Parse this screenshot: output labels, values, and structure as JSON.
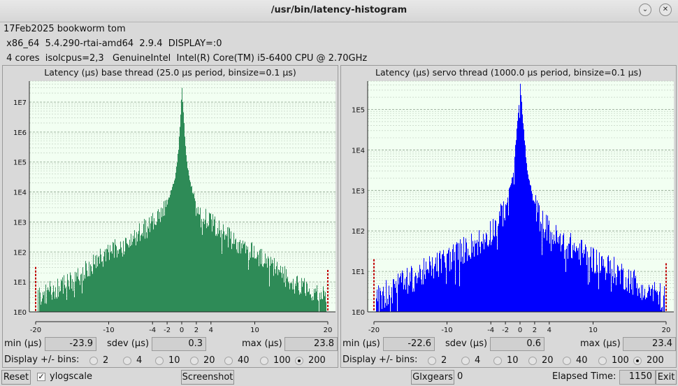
{
  "window": {
    "title": "/usr/bin/latency-histogram",
    "minimize_icon": "chevron-down-icon",
    "close_icon": "close-icon"
  },
  "info": {
    "line1": "17Feb2025 bookworm tom",
    "line2": " x86_64  5.4.290-rtai-amd64  2.9.4  DISPLAY=:0",
    "line3": " 4 cores  isolcpus=2,3   GenuineIntel  Intel(R) Core(TM) i5-6400 CPU @ 2.70GHz"
  },
  "panels": [
    {
      "title": "Latency (µs) base thread (25.0 µs period, binsize=0.1 µs)",
      "color": "#2e8b57",
      "min_label": "min (µs)",
      "min": "-23.9",
      "sdev_label": "sdev (µs)",
      "sdev": "0.3",
      "max_label": "max (µs)",
      "max": "23.8",
      "bins_label": "Display +/- bins:",
      "bins": [
        "2",
        "4",
        "10",
        "20",
        "40",
        "100",
        "200"
      ],
      "selected_bin": "200"
    },
    {
      "title": "Latency (µs) servo thread (1000.0 µs period, binsize=0.1 µs)",
      "color": "#0000ff",
      "min_label": "min (µs)",
      "min": "-22.6",
      "sdev_label": "sdev (µs)",
      "sdev": "0.6",
      "max_label": "max (µs)",
      "max": "23.4",
      "bins_label": "Display +/- bins:",
      "bins": [
        "2",
        "4",
        "10",
        "20",
        "40",
        "100",
        "200"
      ],
      "selected_bin": "200"
    }
  ],
  "chart_data": [
    {
      "type": "bar",
      "title": "Latency (µs) base thread (25.0 µs period, binsize=0.1 µs)",
      "xlim": [
        -20,
        20
      ],
      "x_ticks": [
        -20,
        -10,
        -4,
        -2,
        0,
        2,
        4,
        10,
        20
      ],
      "y_scale": "log",
      "y_ticks": [
        "1E0",
        "1E1",
        "1E2",
        "1E3",
        "1E4",
        "1E5",
        "1E6",
        "1E7"
      ],
      "ylim_log10": [
        0,
        7.7
      ],
      "grid": true,
      "series": [
        {
          "color": "#2e8b57",
          "x": [
            -20,
            -19,
            -18,
            -17,
            -16,
            -15,
            -14,
            -13,
            -12,
            -11,
            -10,
            -9,
            -8,
            -7,
            -6,
            -5,
            -4,
            -3,
            -2,
            -1,
            -0.5,
            0,
            0.5,
            1,
            2,
            3,
            4,
            5,
            6,
            7,
            8,
            9,
            10,
            11,
            12,
            13,
            14,
            15,
            16,
            17,
            18,
            19,
            20
          ],
          "log10_counts": [
            0.6,
            0.5,
            0.7,
            0.8,
            0.9,
            1.0,
            1.2,
            1.4,
            1.6,
            1.8,
            2.0,
            2.1,
            2.2,
            2.4,
            2.6,
            2.8,
            3.0,
            3.2,
            3.6,
            4.4,
            5.4,
            7.4,
            5.4,
            4.4,
            3.6,
            3.2,
            3.0,
            2.8,
            2.6,
            2.4,
            2.2,
            2.1,
            2.0,
            1.8,
            1.6,
            1.4,
            1.2,
            1.0,
            0.9,
            0.8,
            0.7,
            0.5,
            0.6
          ]
        }
      ],
      "overflow_markers_log10": {
        "left": 1.5,
        "right": 1.4
      }
    },
    {
      "type": "bar",
      "title": "Latency (µs) servo thread (1000.0 µs period, binsize=0.1 µs)",
      "xlim": [
        -20,
        20
      ],
      "x_ticks": [
        -20,
        -10,
        -4,
        -2,
        0,
        2,
        4,
        10,
        20
      ],
      "y_scale": "log",
      "y_ticks": [
        "1E0",
        "1E1",
        "1E2",
        "1E3",
        "1E4",
        "1E5"
      ],
      "ylim_log10": [
        0,
        5.7
      ],
      "grid": true,
      "series": [
        {
          "color": "#0000ff",
          "x": [
            -20,
            -19,
            -18,
            -17,
            -16,
            -15,
            -14,
            -13,
            -12,
            -11,
            -10,
            -9,
            -8,
            -7,
            -6,
            -5,
            -4,
            -3,
            -2,
            -1,
            -0.5,
            0,
            0.5,
            1,
            2,
            3,
            4,
            5,
            6,
            7,
            8,
            9,
            10,
            11,
            12,
            13,
            14,
            15,
            16,
            17,
            18,
            19,
            20
          ],
          "log10_counts": [
            0.3,
            0.4,
            0.5,
            0.6,
            0.7,
            0.8,
            0.9,
            1.0,
            1.1,
            1.2,
            1.3,
            1.4,
            1.5,
            1.6,
            1.7,
            1.8,
            2.0,
            2.2,
            2.6,
            3.4,
            4.4,
            5.6,
            4.4,
            3.4,
            2.6,
            2.2,
            2.0,
            1.8,
            1.7,
            1.6,
            1.5,
            1.4,
            1.3,
            1.2,
            1.1,
            1.0,
            0.9,
            0.8,
            0.7,
            0.6,
            0.5,
            0.4,
            0.3
          ]
        }
      ],
      "overflow_markers_log10": {
        "left": 1.3,
        "right": 1.2
      }
    }
  ],
  "footer": {
    "reset_label": "Reset",
    "ylogscale_label": "ylogscale",
    "ylogscale_checked": true,
    "screenshot_label": "Screenshot",
    "glxgears_label": "Glxgears",
    "glxgears_count": "0",
    "elapsed_label": "Elapsed Time:",
    "elapsed_value": "1150",
    "exit_label": "Exit"
  }
}
